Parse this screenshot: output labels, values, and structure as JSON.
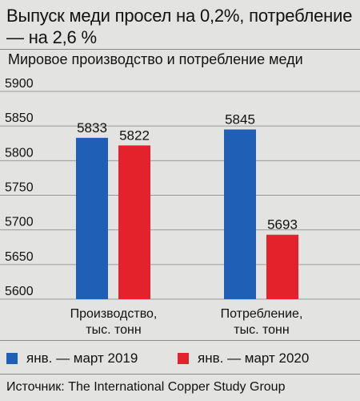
{
  "headline": "Выпуск меди  просел на 0,2%, потребление — на 2,6 %",
  "source": "Источник: The International Copper Study Group",
  "colors": {
    "series_2019": "#1f5fb5",
    "series_2020": "#e3222b",
    "background": "#e3e3e1"
  },
  "chart_data": {
    "type": "bar",
    "title": "Мировое производство и потребление меди",
    "categories": [
      "Производство,\nтыс. тонн",
      "Потребление,\nтыс. тонн"
    ],
    "series": [
      {
        "name": "янв. — март 2019",
        "values": [
          5833,
          5845
        ],
        "labels": [
          "5833",
          "5845"
        ]
      },
      {
        "name": "янв. — март 2020",
        "values": [
          5822,
          5693
        ],
        "labels": [
          "5822",
          "5693"
        ]
      }
    ],
    "yticks": [
      "5900",
      "5850",
      "5800",
      "5750",
      "5700",
      "5650",
      "5600"
    ],
    "ylim": [
      5600,
      5900
    ],
    "grid": true,
    "legend_position": "bottom"
  }
}
